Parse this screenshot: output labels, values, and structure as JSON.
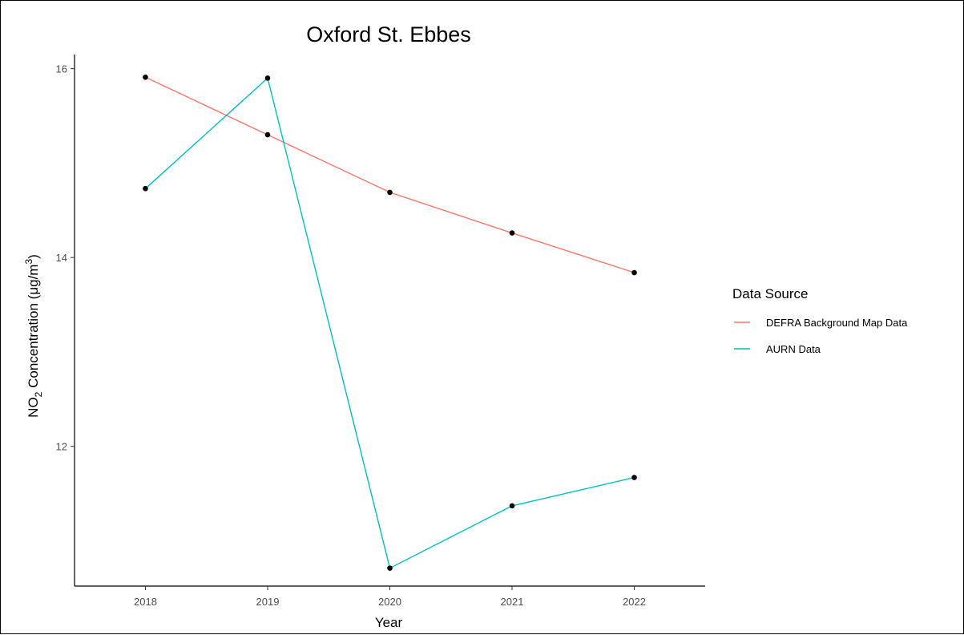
{
  "chart_data": {
    "type": "line",
    "title": "Oxford St. Ebbes",
    "xlabel": "Year",
    "ylabel": {
      "main": "NO",
      "sub": "2",
      "unit_open": " Concentration (μg/m",
      "sup": "3",
      "unit_close": ")"
    },
    "x": [
      2018,
      2019,
      2020,
      2021,
      2022
    ],
    "x_tick_labels": [
      "2018",
      "2019",
      "2020",
      "2021",
      "2022"
    ],
    "xlim": [
      2017.42,
      2022.58
    ],
    "ylim": [
      10.52,
      16.15
    ],
    "y_ticks": [
      12,
      14,
      16
    ],
    "y_tick_labels": [
      "12",
      "14",
      "16"
    ],
    "grid": false,
    "legend": {
      "title": "Data Source",
      "position": "right"
    },
    "series": [
      {
        "name": "DEFRA Background Map Data",
        "color": "#F8766D",
        "values": [
          15.91,
          15.3,
          14.69,
          14.26,
          13.84
        ]
      },
      {
        "name": "AURN Data",
        "color": "#00BFC4",
        "values": [
          14.73,
          15.9,
          10.71,
          11.37,
          11.67
        ]
      }
    ],
    "point_color": "#000000"
  }
}
